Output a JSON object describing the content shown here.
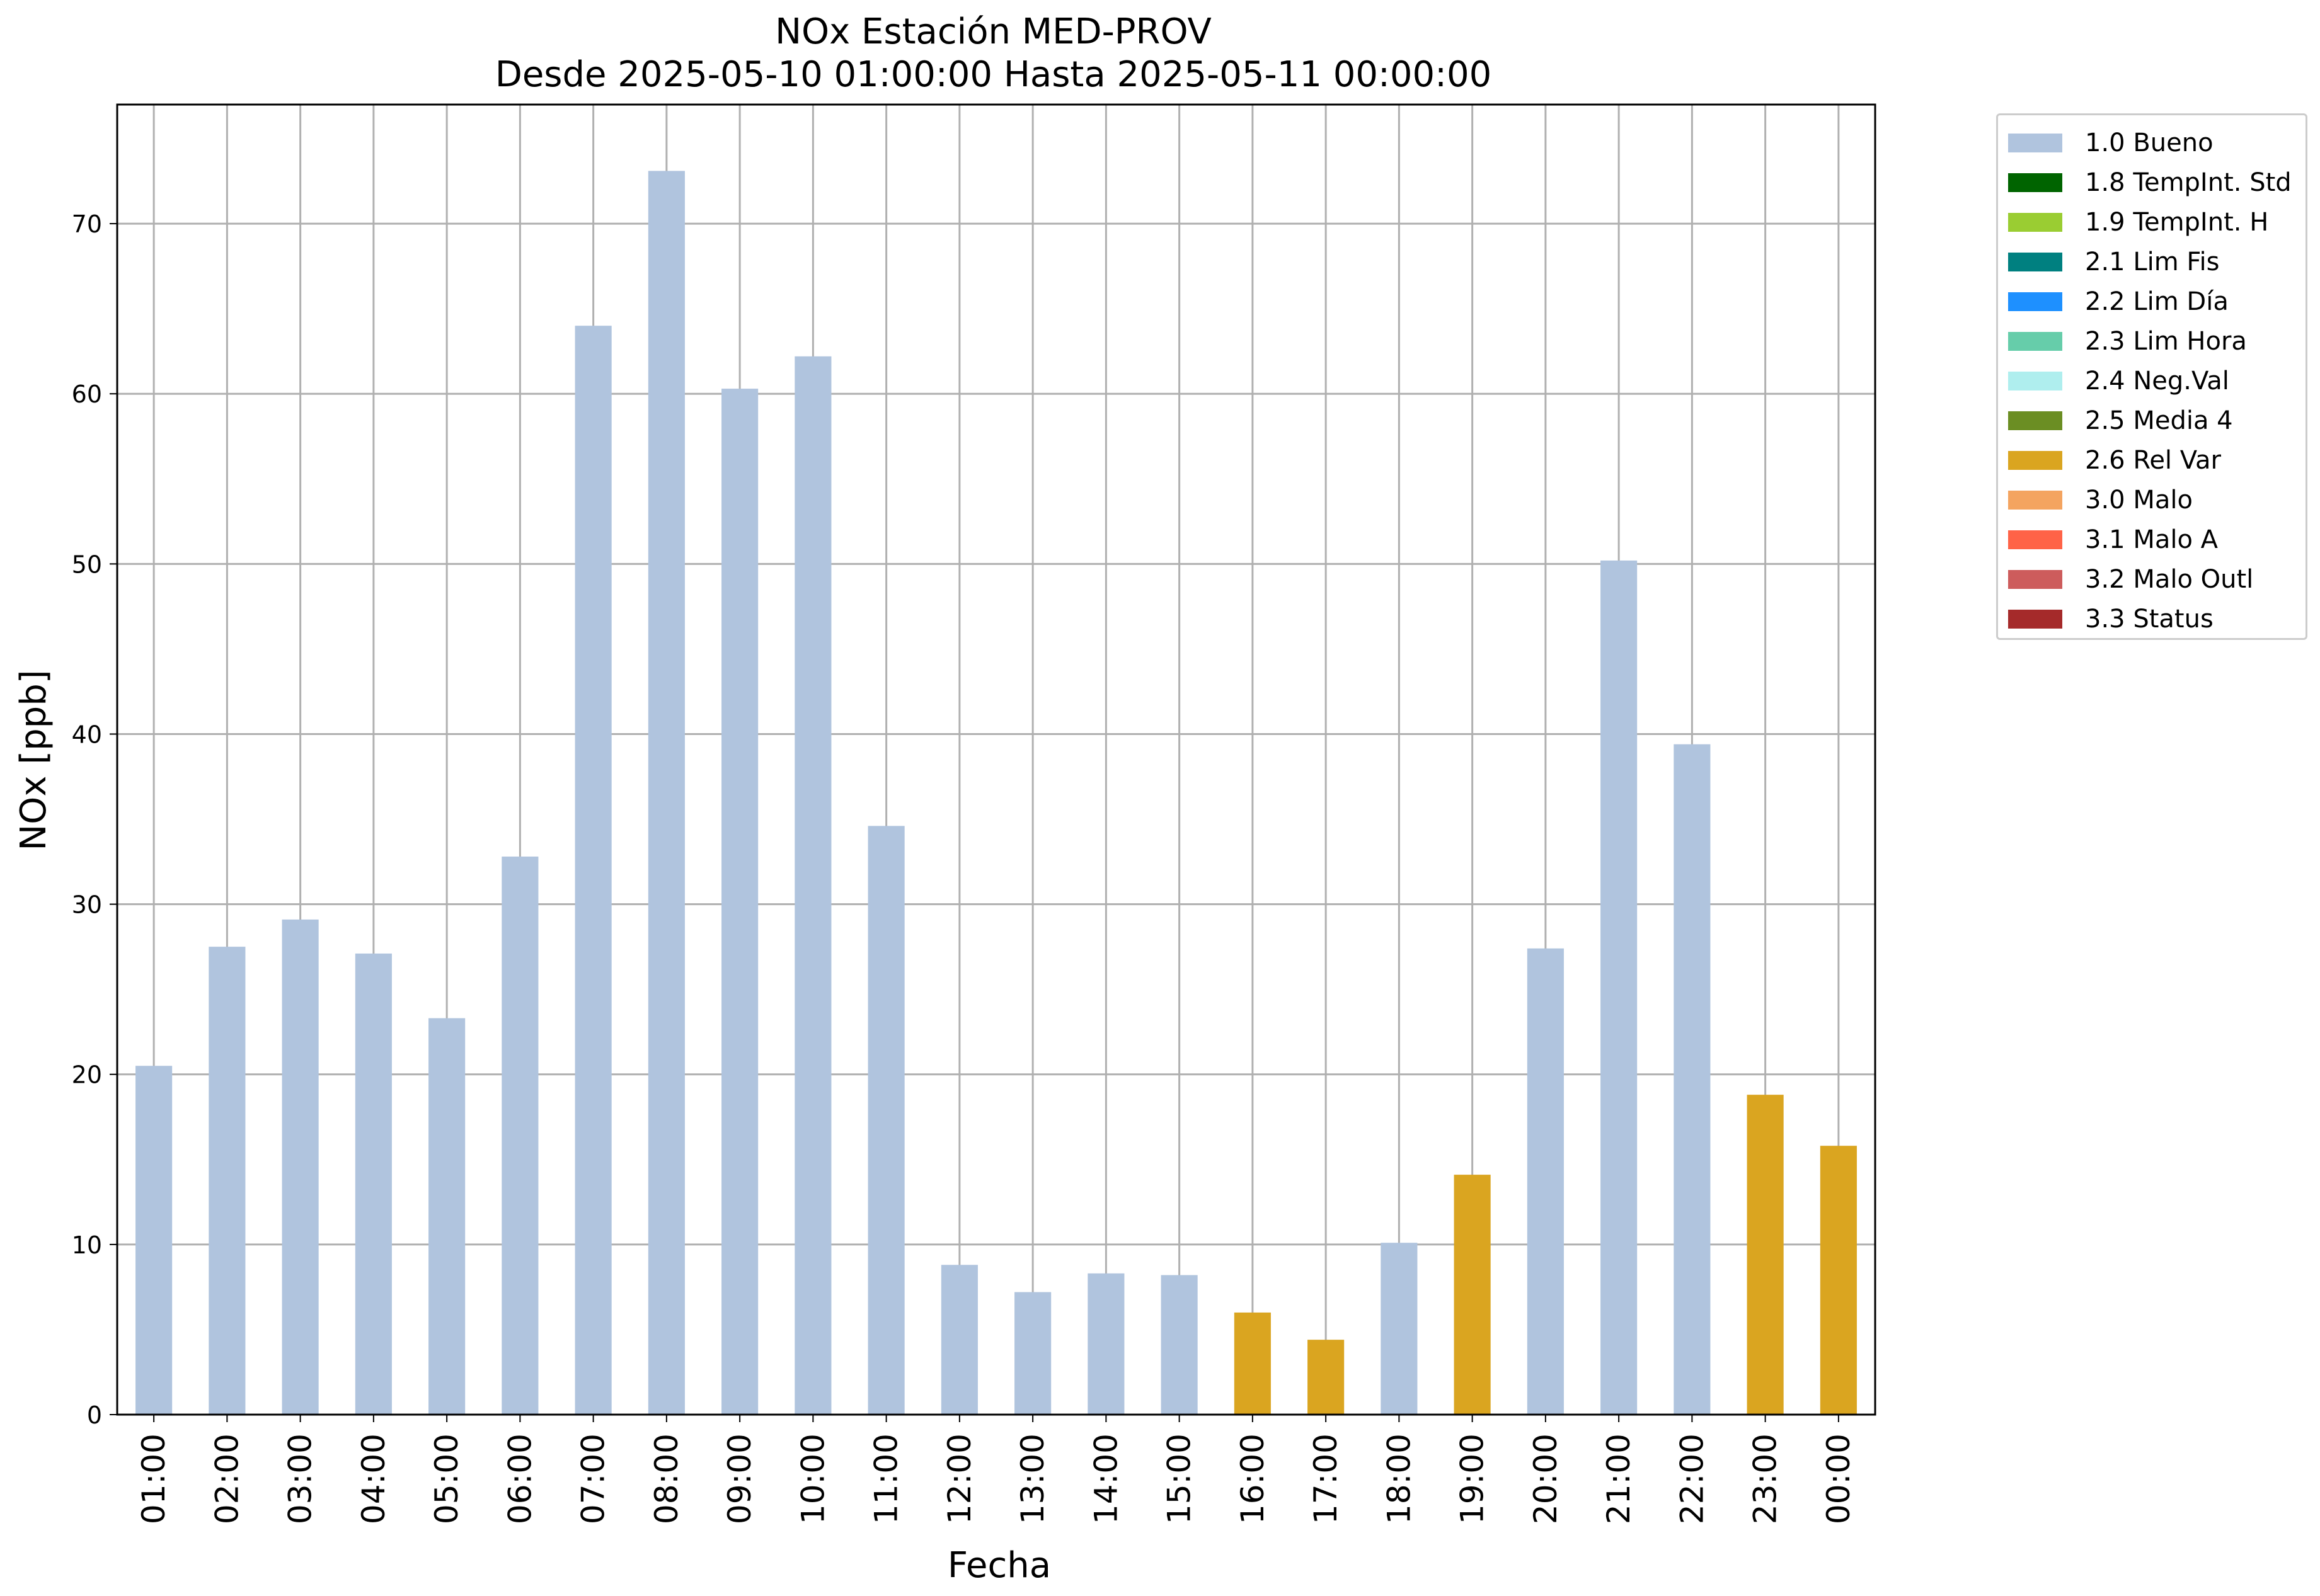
{
  "chart_data": {
    "type": "bar",
    "title": "NOx Estación MED-PROV",
    "subtitle": "Desde 2025-05-10 01:00:00 Hasta 2025-05-11 00:00:00",
    "xlabel": "Fecha",
    "ylabel": "NOx [ppb]",
    "ylim": [
      0,
      77
    ],
    "yticks": [
      "0",
      "10",
      "20",
      "30",
      "40",
      "50",
      "60",
      "70"
    ],
    "grid": true,
    "legend_position": "outside-right-top",
    "categories": [
      "01:00",
      "02:00",
      "03:00",
      "04:00",
      "05:00",
      "06:00",
      "07:00",
      "08:00",
      "09:00",
      "10:00",
      "11:00",
      "12:00",
      "13:00",
      "14:00",
      "15:00",
      "16:00",
      "17:00",
      "18:00",
      "19:00",
      "20:00",
      "21:00",
      "22:00",
      "23:00",
      "00:00"
    ],
    "values": [
      20.5,
      27.5,
      29.1,
      27.1,
      23.3,
      32.8,
      64.0,
      73.1,
      60.3,
      62.2,
      34.6,
      8.8,
      7.2,
      8.3,
      8.2,
      6.0,
      4.4,
      10.1,
      14.1,
      27.4,
      50.2,
      39.4,
      18.8,
      15.8
    ],
    "flags": [
      "1.0 Bueno",
      "1.0 Bueno",
      "1.0 Bueno",
      "1.0 Bueno",
      "1.0 Bueno",
      "1.0 Bueno",
      "1.0 Bueno",
      "1.0 Bueno",
      "1.0 Bueno",
      "1.0 Bueno",
      "1.0 Bueno",
      "1.0 Bueno",
      "1.0 Bueno",
      "1.0 Bueno",
      "1.0 Bueno",
      "2.6 Rel Var",
      "2.6 Rel Var",
      "1.0 Bueno",
      "2.6 Rel Var",
      "1.0 Bueno",
      "1.0 Bueno",
      "1.0 Bueno",
      "2.6 Rel Var",
      "2.6 Rel Var"
    ],
    "legend": [
      {
        "label": "1.0 Bueno",
        "color": "#b0c4de"
      },
      {
        "label": "1.8 TempInt. Std",
        "color": "#006400"
      },
      {
        "label": "1.9 TempInt. H",
        "color": "#9acd32"
      },
      {
        "label": "2.1 Lim Fis",
        "color": "#008080"
      },
      {
        "label": "2.2 Lim Día",
        "color": "#1e90ff"
      },
      {
        "label": "2.3 Lim Hora",
        "color": "#66cdaa"
      },
      {
        "label": "2.4 Neg.Val",
        "color": "#afeeee"
      },
      {
        "label": "2.5 Media 4",
        "color": "#6b8e23"
      },
      {
        "label": "2.6 Rel Var",
        "color": "#daa520"
      },
      {
        "label": "3.0 Malo",
        "color": "#f4a460"
      },
      {
        "label": "3.1 Malo A",
        "color": "#ff6347"
      },
      {
        "label": "3.2 Malo Outl",
        "color": "#cd5c5c"
      },
      {
        "label": "3.3 Status",
        "color": "#a52a2a"
      }
    ]
  }
}
